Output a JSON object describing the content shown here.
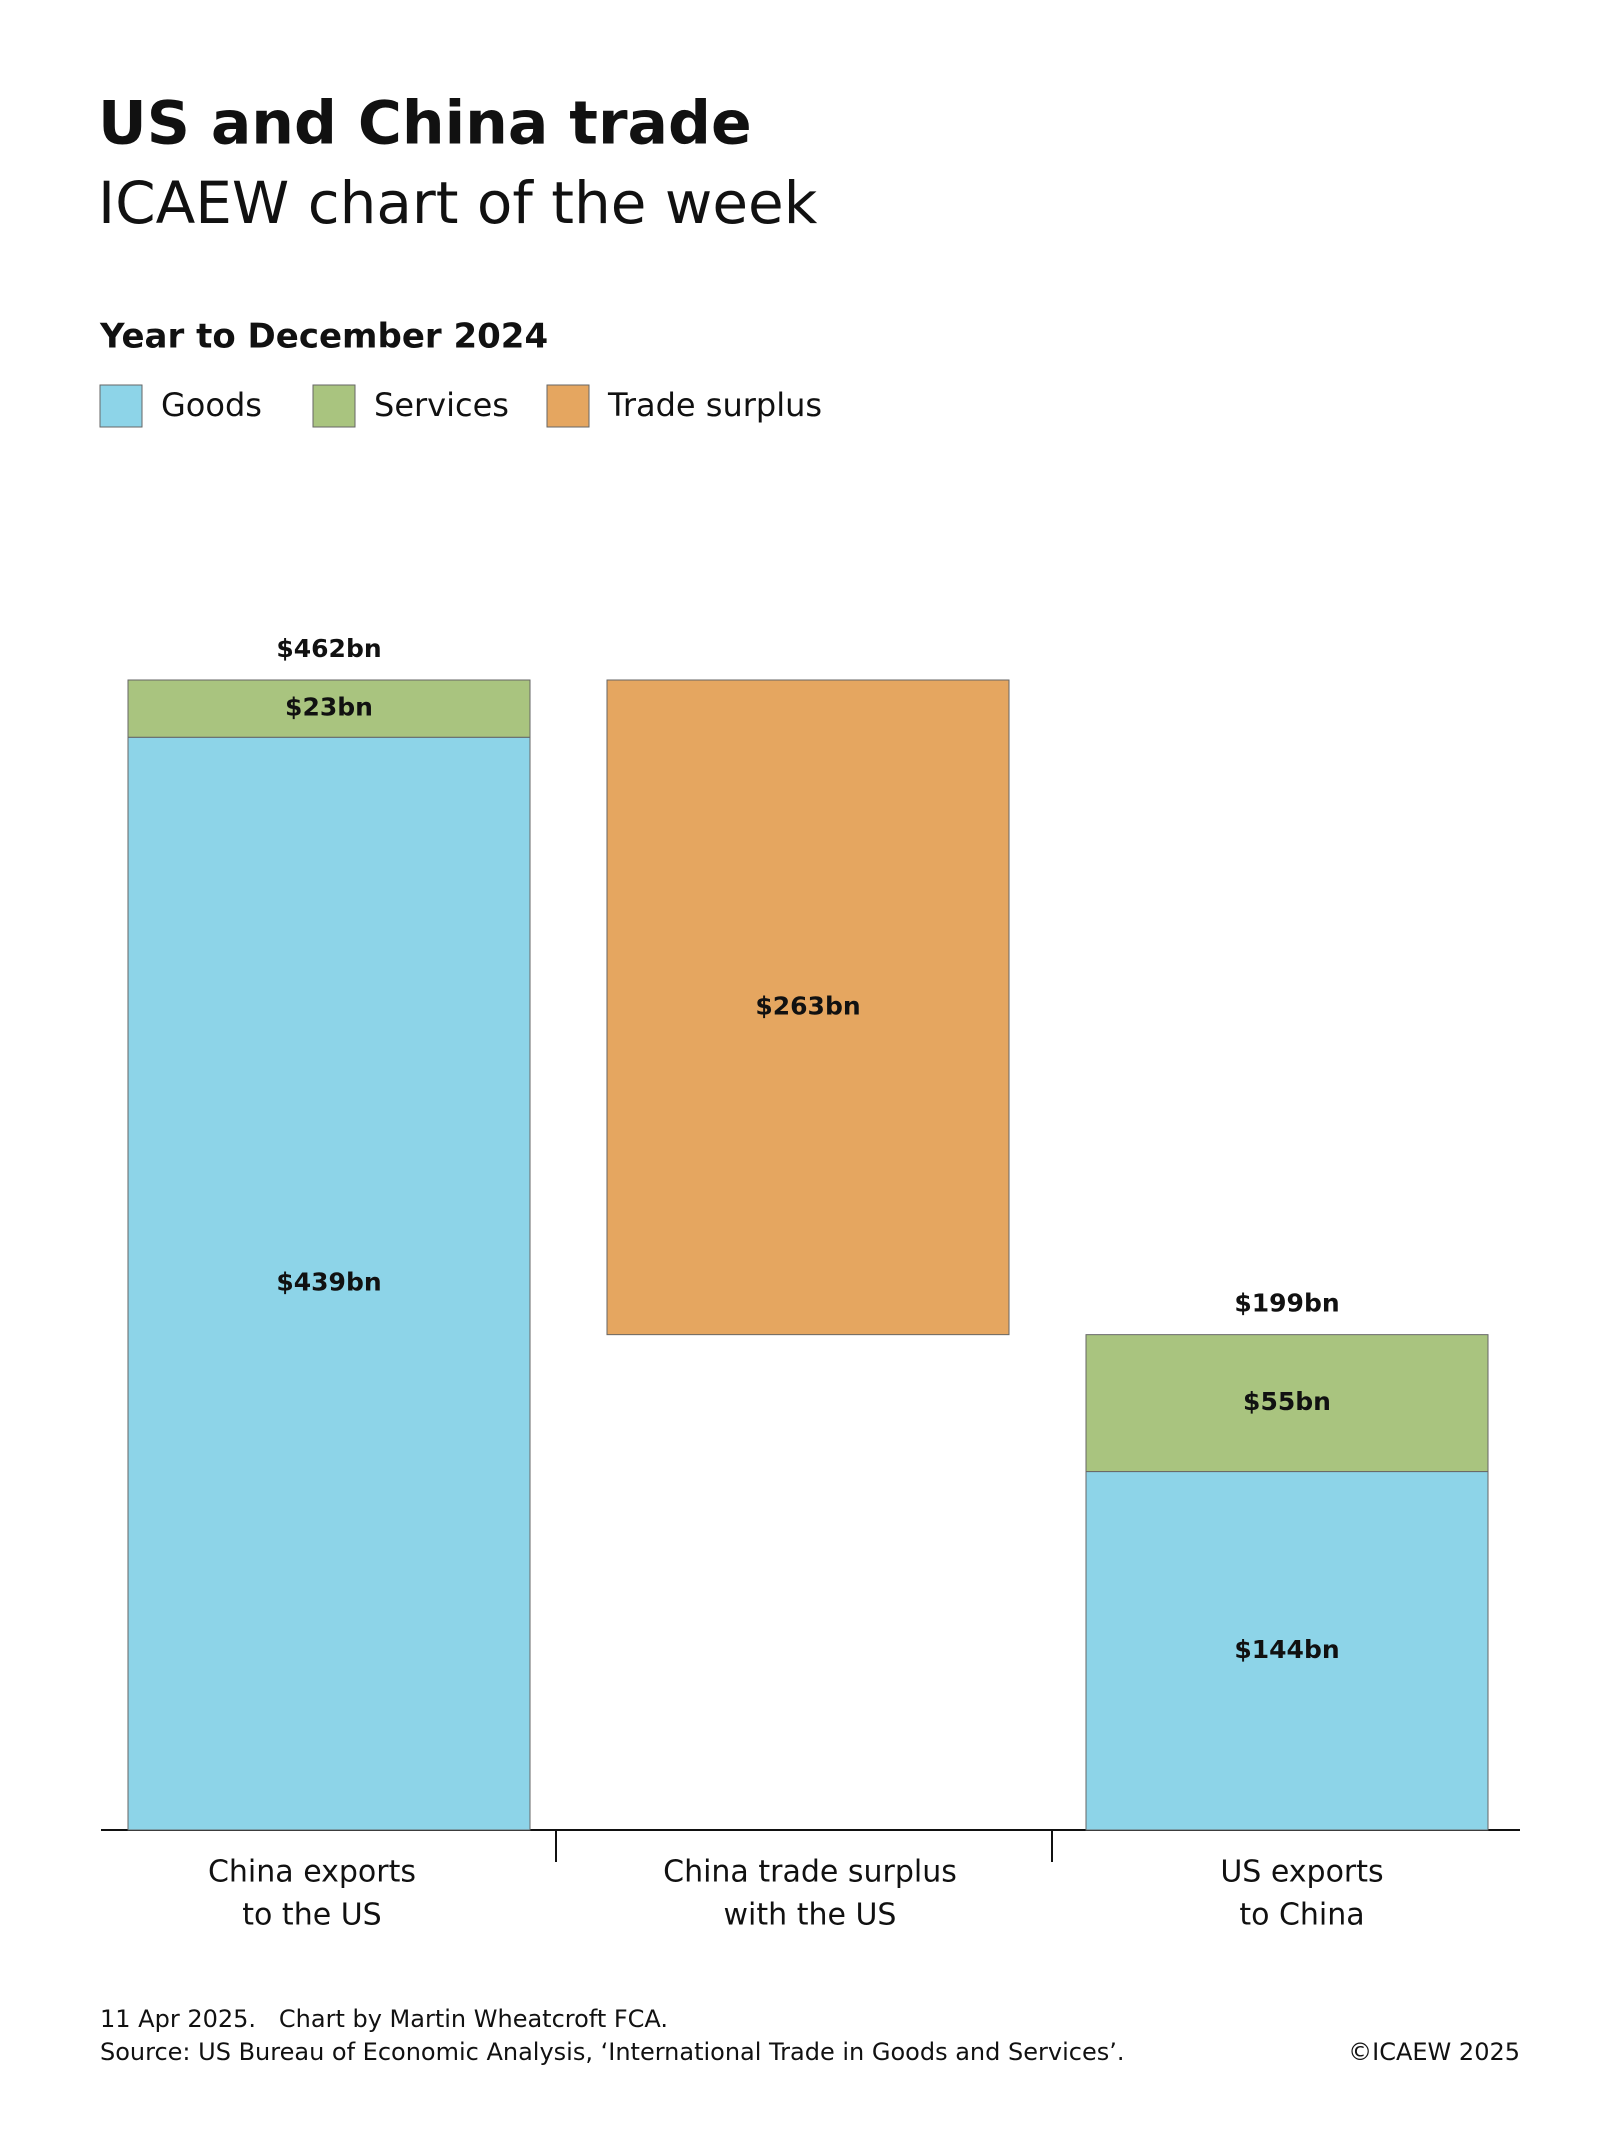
{
  "chart_data": {
    "type": "waterfall",
    "title": "US and China trade",
    "subtitle": "ICAEW chart of the week",
    "period": "Year to December 2024",
    "categories": [
      [
        "China exports",
        "to the US"
      ],
      [
        "China trade surplus",
        "with the US"
      ],
      [
        "US exports",
        "to China"
      ]
    ],
    "series": [
      {
        "name": "Goods",
        "color": "#8dd4e8",
        "values": [
          439,
          null,
          144
        ],
        "value_labels": [
          "$439bn",
          null,
          "$144bn"
        ]
      },
      {
        "name": "Services",
        "color": "#a9c47f",
        "values": [
          23,
          null,
          55
        ],
        "value_labels": [
          "$23bn",
          null,
          "$55bn"
        ]
      },
      {
        "name": "Trade surplus",
        "color": "#e5a660",
        "values": [
          null,
          263,
          null
        ],
        "value_labels": [
          null,
          "$263bn",
          null
        ],
        "hang_from_previous": true
      }
    ],
    "totals": [
      462,
      null,
      199
    ],
    "total_labels": [
      "$462bn",
      null,
      "$199bn"
    ],
    "ylim": [
      0,
      462
    ],
    "date_credit": "11 Apr 2025.   Chart by Martin Wheatcroft FCA.",
    "source": "Source: US Bureau of Economic Analysis, ‘International Trade in Goods and Services’.",
    "copyright": "©ICAEW 2025"
  }
}
